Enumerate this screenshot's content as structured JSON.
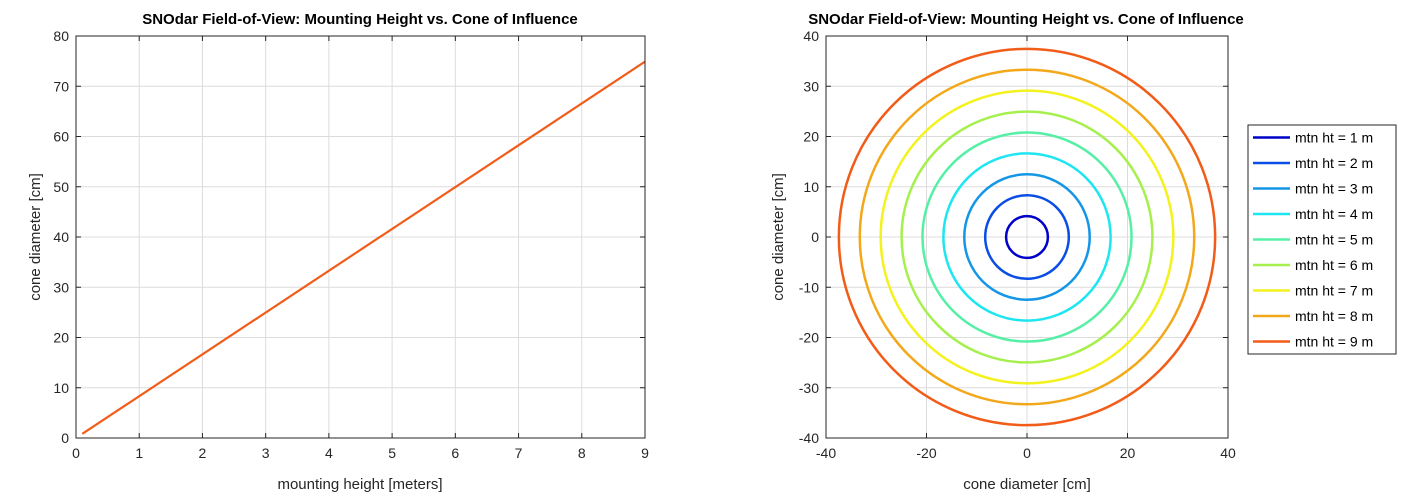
{
  "chart_data": [
    {
      "type": "line",
      "title": "SNOdar Field-of-View: Mounting Height vs. Cone of Influence",
      "xlabel": "mounting height [meters]",
      "ylabel": "cone diameter [cm]",
      "xlim": [
        0,
        9
      ],
      "ylim": [
        0,
        80
      ],
      "xticks": [
        0,
        1,
        2,
        3,
        4,
        5,
        6,
        7,
        8,
        9
      ],
      "yticks": [
        0,
        10,
        20,
        30,
        40,
        50,
        60,
        70,
        80
      ],
      "grid": true,
      "series": [
        {
          "x": [
            0.1,
            9
          ],
          "y": [
            0.83,
            74.9
          ],
          "color": "#f25c19"
        }
      ]
    },
    {
      "type": "line",
      "title": "SNOdar Field-of-View: Mounting Height vs. Cone of Influence",
      "xlabel": "cone diameter [cm]",
      "ylabel": "cone diameter [cm]",
      "xlim": [
        -40,
        40
      ],
      "ylim": [
        -40,
        40
      ],
      "xticks": [
        -40,
        -20,
        0,
        20,
        40
      ],
      "yticks": [
        -40,
        -30,
        -20,
        -10,
        0,
        10,
        20,
        30,
        40
      ],
      "grid": true,
      "legend": "outside-right",
      "series": [
        {
          "name": "mtn ht = 1 m",
          "radius": 4.16,
          "color": "#0000c8"
        },
        {
          "name": "mtn ht = 2 m",
          "radius": 8.32,
          "color": "#0a4ee6"
        },
        {
          "name": "mtn ht = 3 m",
          "radius": 12.48,
          "color": "#1496e6"
        },
        {
          "name": "mtn ht = 4 m",
          "radius": 16.64,
          "color": "#1ee6f0"
        },
        {
          "name": "mtn ht = 5 m",
          "radius": 20.8,
          "color": "#55f0a6"
        },
        {
          "name": "mtn ht = 6 m",
          "radius": 24.96,
          "color": "#a6f04d"
        },
        {
          "name": "mtn ht = 7 m",
          "radius": 29.12,
          "color": "#f4f21e"
        },
        {
          "name": "mtn ht = 8 m",
          "radius": 33.28,
          "color": "#f2a81a"
        },
        {
          "name": "mtn ht = 9 m",
          "radius": 37.44,
          "color": "#f25c19"
        }
      ]
    }
  ]
}
